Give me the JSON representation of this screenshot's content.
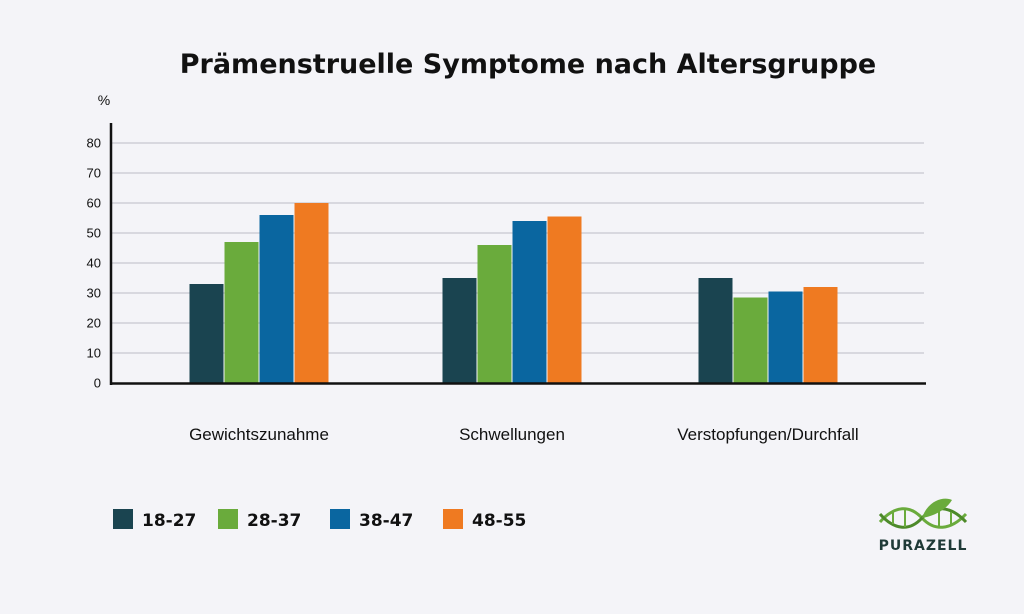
{
  "chart_data": {
    "type": "bar",
    "title": "Prämenstruelle Symptome nach Altersgruppe",
    "ylabel": "%",
    "xlabel": "",
    "ylim": [
      0,
      80
    ],
    "yticks": [
      0,
      10,
      20,
      30,
      40,
      50,
      60,
      70,
      80
    ],
    "grid": true,
    "legend_position": "bottom-left",
    "categories": [
      "Gewichtszunahme",
      "Schwellungen",
      "Verstopfungen/Durchfall"
    ],
    "series": [
      {
        "name": "18-27",
        "color": "#1a4450",
        "values": [
          33,
          35,
          35
        ]
      },
      {
        "name": "28-37",
        "color": "#6aab3c",
        "values": [
          47,
          46,
          28.5
        ]
      },
      {
        "name": "38-47",
        "color": "#0a66a0",
        "values": [
          56,
          54,
          30.5
        ]
      },
      {
        "name": "48-55",
        "color": "#ef7a21",
        "values": [
          60,
          55.5,
          32
        ]
      }
    ]
  },
  "logo": {
    "text": "PURAZELL",
    "icon": "dna-leaf-icon",
    "color": "#6aab3c"
  }
}
